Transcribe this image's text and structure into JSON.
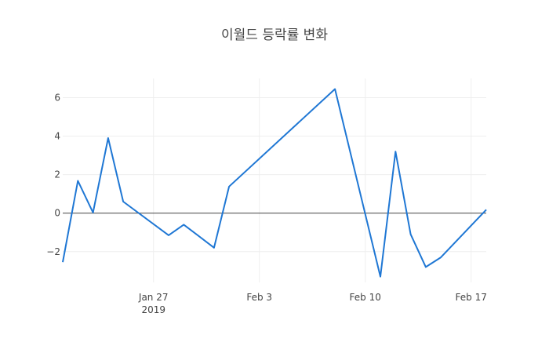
{
  "chart_data": {
    "type": "line",
    "title": "이월드 등락률 변화",
    "xlabel": "",
    "ylabel": "",
    "x_type": "date",
    "xlim": [
      "2019-01-21",
      "2019-02-18"
    ],
    "ylim": [
      -3.6,
      7.0
    ],
    "x_ticks": [
      {
        "value": "2019-01-27",
        "label": "Jan 27",
        "sublabel": "2019"
      },
      {
        "value": "2019-02-03",
        "label": "Feb 3",
        "sublabel": ""
      },
      {
        "value": "2019-02-10",
        "label": "Feb 10",
        "sublabel": ""
      },
      {
        "value": "2019-02-17",
        "label": "Feb 17",
        "sublabel": ""
      }
    ],
    "y_ticks": [
      {
        "value": -2,
        "label": "−2"
      },
      {
        "value": 0,
        "label": "0"
      },
      {
        "value": 2,
        "label": "2"
      },
      {
        "value": 4,
        "label": "4"
      },
      {
        "value": 6,
        "label": "6"
      }
    ],
    "grid": true,
    "legend": false,
    "series": [
      {
        "color": "#1f77d4",
        "x": [
          "2019-01-21",
          "2019-01-22",
          "2019-01-23",
          "2019-01-24",
          "2019-01-25",
          "2019-01-28",
          "2019-01-29",
          "2019-01-31",
          "2019-02-01",
          "2019-02-08",
          "2019-02-11",
          "2019-02-12",
          "2019-02-13",
          "2019-02-14",
          "2019-02-15",
          "2019-02-18"
        ],
        "y": [
          -2.55,
          1.68,
          0.03,
          3.9,
          0.6,
          -1.15,
          -0.6,
          -1.8,
          1.38,
          6.45,
          -3.3,
          3.2,
          -1.1,
          -2.8,
          -2.3,
          0.18
        ]
      }
    ]
  }
}
